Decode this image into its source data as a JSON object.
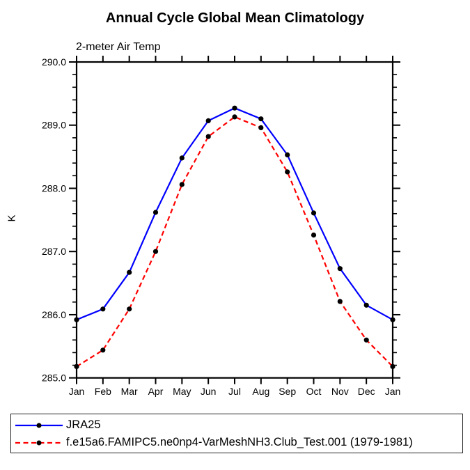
{
  "chart_data": {
    "type": "line",
    "title": "Annual Cycle Global Mean Climatology",
    "subtitle": "2-meter Air Temp",
    "ylabel": "K",
    "x_ticklabels": [
      "Jan",
      "Feb",
      "Mar",
      "Apr",
      "May",
      "Jun",
      "Jul",
      "Aug",
      "Sep",
      "Oct",
      "Nov",
      "Dec",
      "Jan"
    ],
    "ylim": [
      285.0,
      290.0
    ],
    "y_major_ticks": [
      285.0,
      286.0,
      287.0,
      288.0,
      289.0,
      290.0
    ],
    "y_minor_step": 0.2,
    "grid": false,
    "legend_position": "bottom-left",
    "axis_color": "#000000",
    "marker_color": "#000000",
    "series": [
      {
        "name": "JRA25",
        "color": "#0000ff",
        "line_style": "solid",
        "marker": "filled-circle",
        "values": [
          285.92,
          286.09,
          286.67,
          287.62,
          288.48,
          289.07,
          289.27,
          289.1,
          288.53,
          287.61,
          286.73,
          286.15,
          285.92
        ]
      },
      {
        "name": "f.e15a6.FAMIPC5.ne0np4-VarMeshNH3.Club_Test.001 (1979-1981)",
        "color": "#ff0000",
        "line_style": "dashed",
        "marker": "filled-circle",
        "values": [
          285.18,
          285.44,
          286.09,
          287.0,
          288.06,
          288.82,
          289.13,
          288.96,
          288.26,
          287.26,
          286.21,
          285.6,
          285.18
        ]
      }
    ]
  }
}
